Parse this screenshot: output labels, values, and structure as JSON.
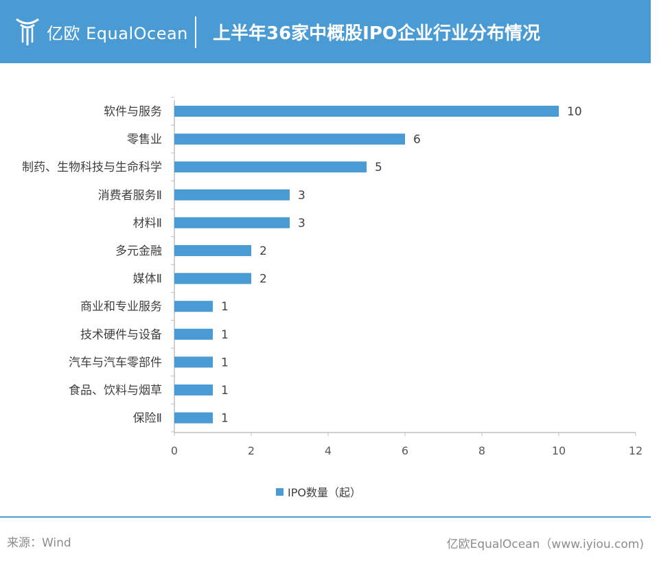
{
  "header": {
    "logo_text": "亿欧 EqualOcean",
    "title": "上半年36家中概股IPO企业行业分布情况",
    "background_color": "#4a9ad4"
  },
  "chart_data": {
    "type": "bar",
    "orientation": "horizontal",
    "categories": [
      "软件与服务",
      "零售业",
      "制药、生物科技与生命科学",
      "消费者服务Ⅱ",
      "材料Ⅱ",
      "多元金融",
      "媒体Ⅱ",
      "商业和专业服务",
      "技术硬件与设备",
      "汽车与汽车零部件",
      "食品、饮料与烟草",
      "保险Ⅱ"
    ],
    "series": [
      {
        "name": "IPO数量（起）",
        "values": [
          10,
          6,
          5,
          3,
          3,
          2,
          2,
          1,
          1,
          1,
          1,
          1
        ],
        "color": "#4a9ad4"
      }
    ],
    "xlim": [
      0,
      12
    ],
    "xticks": [
      0,
      2,
      4,
      6,
      8,
      10,
      12
    ],
    "grid": false,
    "legend_position": "bottom",
    "data_labels": true
  },
  "footer": {
    "source": "来源：Wind",
    "credit": "亿欧EqualOcean（www.iyiou.com)"
  }
}
